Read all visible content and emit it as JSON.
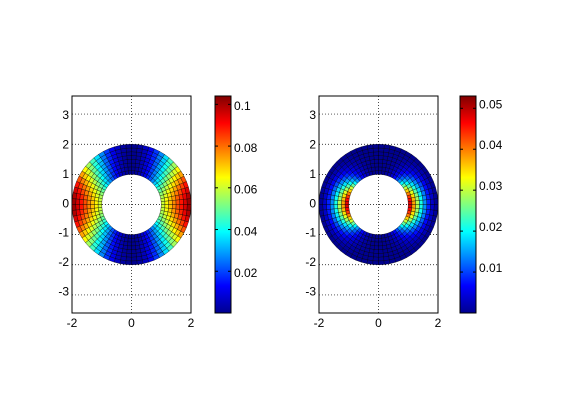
{
  "chart_data": [
    {
      "type": "heatmap",
      "title": "",
      "xlabel": "",
      "ylabel": "",
      "xlim": [
        -2,
        2
      ],
      "ylim": [
        -3.6,
        3.6
      ],
      "xticks": [
        "-2",
        "0",
        "2"
      ],
      "yticks": [
        "3",
        "2",
        "1",
        "0",
        "-1",
        "-2",
        "-3"
      ],
      "grid": true,
      "colormap": "jet",
      "annulus": {
        "inner_radius": 1,
        "outer_radius": 2
      },
      "values_max": 0.104,
      "pattern": "cos2",
      "colorbar": {
        "ticks": [
          "0.1",
          "0.08",
          "0.06",
          "0.04",
          "0.02"
        ],
        "values": [
          0.1,
          0.08,
          0.06,
          0.04,
          0.02
        ],
        "range": [
          0,
          0.104
        ]
      }
    },
    {
      "type": "heatmap",
      "title": "",
      "xlabel": "",
      "ylabel": "",
      "xlim": [
        -2,
        2
      ],
      "ylim": [
        -3.6,
        3.6
      ],
      "xticks": [
        "-2",
        "0",
        "2"
      ],
      "yticks": [
        "3",
        "2",
        "1",
        "0",
        "-1",
        "-2",
        "-3"
      ],
      "grid": true,
      "colormap": "jet",
      "annulus": {
        "inner_radius": 1,
        "outer_radius": 2
      },
      "values_max": 0.053,
      "pattern": "cos-inner",
      "colorbar": {
        "ticks": [
          "0.05",
          "0.04",
          "0.03",
          "0.02",
          "0.01"
        ],
        "values": [
          0.05,
          0.04,
          0.03,
          0.02,
          0.01
        ],
        "range": [
          0,
          0.053
        ]
      }
    }
  ]
}
